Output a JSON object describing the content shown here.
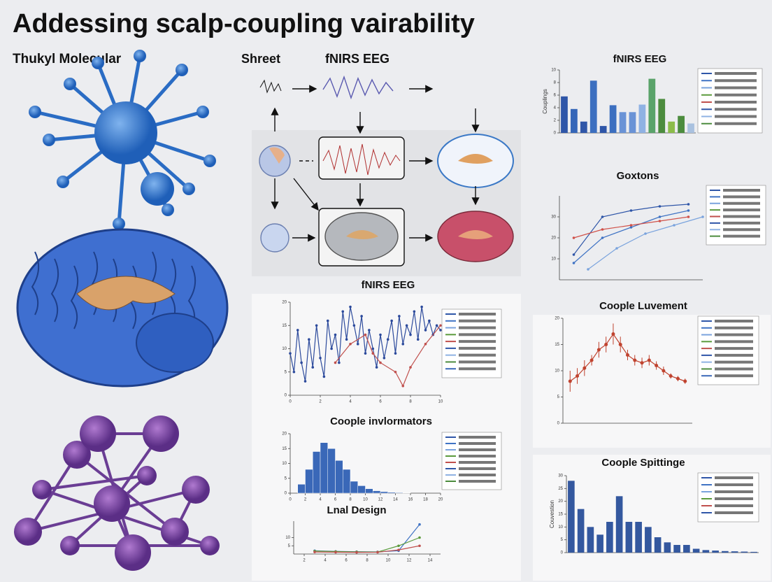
{
  "title": "Addessing scalp-coupling vairability",
  "left": {
    "label": "Thukyl Molecular"
  },
  "diagram": {
    "labels": [
      "Shreet",
      "fNIRS EEG"
    ]
  },
  "panels": [
    {
      "title": "fNIRS EEG",
      "type": "bar",
      "ylabel": "Couplings",
      "ylim": [
        0,
        10
      ],
      "yticks": [
        0,
        2,
        4,
        6,
        8,
        10
      ],
      "values": [
        5.8,
        3.8,
        1.8,
        8.3,
        1.1,
        4.4,
        3.3,
        3.3,
        4.5,
        8.6,
        5.4,
        1.8,
        2.7,
        1.5
      ],
      "colors": [
        "#2f56a8",
        "#3566b8",
        "#2f56a8",
        "#3c6fc0",
        "#2f56a8",
        "#3c6fc0",
        "#6a93d6",
        "#6a93d6",
        "#8fb2e3",
        "#5aa36a",
        "#4c8c3e",
        "#8cbc4a",
        "#4c8c3e",
        "#a9c1df"
      ]
    },
    {
      "title": "Goxtons",
      "type": "line",
      "markers": true,
      "xlim": [
        0,
        10
      ],
      "ylim": [
        0,
        40
      ],
      "yticks": [
        10,
        20,
        30
      ],
      "series": [
        {
          "color": "#2f56a8",
          "x": [
            1,
            3,
            5,
            7,
            9
          ],
          "values": [
            12,
            30,
            33,
            35,
            36
          ]
        },
        {
          "color": "#3f73c4",
          "x": [
            1,
            3,
            5,
            7,
            9
          ],
          "values": [
            8,
            20,
            25,
            30,
            33
          ]
        },
        {
          "color": "#7aa3dd",
          "x": [
            2,
            4,
            6,
            8,
            10
          ],
          "values": [
            5,
            15,
            22,
            26,
            30
          ]
        },
        {
          "color": "#d0524a",
          "x": [
            1,
            3,
            5,
            7,
            9
          ],
          "values": [
            20,
            24,
            26,
            28,
            30
          ]
        }
      ]
    },
    {
      "title": "fNIRS EEG",
      "type": "line",
      "markers": true,
      "xlim": [
        0,
        10
      ],
      "ylim": [
        0,
        20
      ],
      "xticks": [
        0,
        2,
        4,
        6,
        8,
        10
      ],
      "yticks": [
        0,
        5,
        10,
        15,
        20
      ],
      "series": [
        {
          "color": "#2c4a9c",
          "x": [
            0,
            0.25,
            0.5,
            0.75,
            1,
            1.25,
            1.5,
            1.75,
            2,
            2.25,
            2.5,
            2.75,
            3,
            3.25,
            3.5,
            3.75,
            4,
            4.25,
            4.5,
            4.75,
            5,
            5.25,
            5.5,
            5.75,
            6,
            6.25,
            6.5,
            6.75,
            7,
            7.25,
            7.5,
            7.75,
            8,
            8.25,
            8.5,
            8.75,
            9,
            9.25,
            9.5,
            9.75,
            10
          ],
          "values": [
            9,
            5,
            14,
            7,
            3,
            12,
            6,
            15,
            8,
            4,
            16,
            10,
            13,
            7,
            18,
            12,
            19,
            15,
            11,
            17,
            9,
            14,
            10,
            6,
            13,
            8,
            12,
            16,
            9,
            17,
            11,
            15,
            13,
            18,
            12,
            19,
            14,
            16,
            13,
            15,
            14
          ]
        },
        {
          "color": "#c0504d",
          "x": [
            3,
            4,
            5,
            5.5,
            6,
            7,
            7.5,
            8,
            9,
            10
          ],
          "values": [
            7,
            11,
            13,
            9,
            7,
            5,
            2,
            6,
            11,
            15
          ]
        }
      ]
    },
    {
      "title": "Coople Luvement",
      "type": "errorline",
      "color": "#c0432f",
      "xlim": [
        0,
        18
      ],
      "ylim": [
        0,
        20
      ],
      "yticks": [
        0,
        5,
        10,
        15,
        20
      ],
      "x": [
        1,
        2,
        3,
        4,
        5,
        6,
        7,
        8,
        9,
        10,
        11,
        12,
        13,
        14,
        15,
        16,
        17
      ],
      "values": [
        8,
        9,
        10.5,
        12,
        14,
        15,
        17,
        15,
        13,
        12,
        11.5,
        12,
        11,
        10,
        9,
        8.5,
        8
      ],
      "errors": [
        2,
        1.5,
        1.5,
        1,
        1.5,
        1.5,
        2,
        1.5,
        1,
        1,
        1,
        1,
        0.8,
        0.8,
        0.5,
        0.5,
        0.5
      ]
    },
    {
      "title": "Coople invlormators",
      "type": "hist",
      "color": "#3a68b8",
      "xlim": [
        0,
        20
      ],
      "ylim": [
        0,
        20
      ],
      "xticks": [
        0,
        2,
        4,
        6,
        8,
        10,
        12,
        14,
        16,
        18,
        20
      ],
      "yticks": [
        0,
        5,
        10,
        15,
        20
      ],
      "bins": [
        1,
        2,
        3,
        4,
        5,
        6,
        7,
        8,
        9,
        10,
        11,
        12,
        13,
        14,
        15,
        16
      ],
      "values": [
        3,
        8,
        14,
        17,
        15,
        11,
        8,
        4,
        2.5,
        1.5,
        0.8,
        0.5,
        0.3,
        0.2,
        0.1
      ]
    },
    {
      "title": "Coople Spittinge",
      "type": "bar",
      "ylabel": "Couvestion",
      "color": "#34589f",
      "ylim": [
        0,
        30
      ],
      "yticks": [
        0,
        5,
        10,
        15,
        20,
        25,
        30
      ],
      "values": [
        28,
        17,
        10,
        7,
        12,
        22,
        12,
        12,
        10,
        6,
        4,
        3,
        3,
        1.5,
        1,
        0.8,
        0.6,
        0.5,
        0.4,
        0.3
      ]
    },
    {
      "title": "Lnal Design",
      "type": "line",
      "markers": true,
      "xlim": [
        1,
        15
      ],
      "ylim": [
        0,
        20
      ],
      "xticks": [
        2,
        4,
        6,
        8,
        10,
        12,
        14
      ],
      "yticks": [
        5,
        10
      ],
      "series": [
        {
          "color": "#3f73c4",
          "x": [
            3,
            5,
            7,
            9,
            11,
            13
          ],
          "values": [
            2,
            1.6,
            1.4,
            1.3,
            2,
            18
          ]
        },
        {
          "color": "#5b9a3c",
          "x": [
            3,
            5,
            7,
            9,
            11,
            13
          ],
          "values": [
            1.8,
            1.5,
            1.3,
            1.2,
            5,
            10
          ]
        },
        {
          "color": "#c0504d",
          "x": [
            3,
            5,
            7,
            9,
            11,
            13
          ],
          "values": [
            1.2,
            1.1,
            1,
            1.1,
            2.5,
            5
          ]
        }
      ]
    }
  ]
}
